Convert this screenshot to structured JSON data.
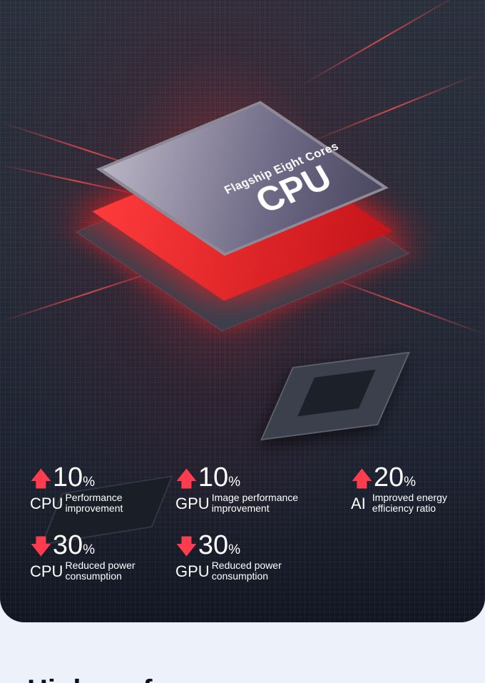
{
  "chip": {
    "subtitle": "Flagship Eight Cores",
    "title": "CPU"
  },
  "colors": {
    "accent": "#ff3b4e",
    "background": "#edf2fa",
    "card": "#232836"
  },
  "stats": [
    {
      "direction": "up",
      "icon": "arrow-up-icon",
      "value": "10",
      "unit": "%",
      "component": "CPU",
      "label_line1": "Performance",
      "label_line2": "improvement"
    },
    {
      "direction": "up",
      "icon": "arrow-up-icon",
      "value": "10",
      "unit": "%",
      "component": "GPU",
      "label_line1": "Image performance",
      "label_line2": "improvement"
    },
    {
      "direction": "up",
      "icon": "arrow-up-icon",
      "value": "20",
      "unit": "%",
      "component": "AI",
      "label_line1": "Improved energy",
      "label_line2": "efficiency ratio"
    },
    {
      "direction": "down",
      "icon": "arrow-down-icon",
      "value": "30",
      "unit": "%",
      "component": "CPU",
      "label_line1": "Reduced power",
      "label_line2": "consumption"
    },
    {
      "direction": "down",
      "icon": "arrow-down-icon",
      "value": "30",
      "unit": "%",
      "component": "GPU",
      "label_line1": "Reduced power",
      "label_line2": "consumption"
    }
  ],
  "headline": "High performance"
}
